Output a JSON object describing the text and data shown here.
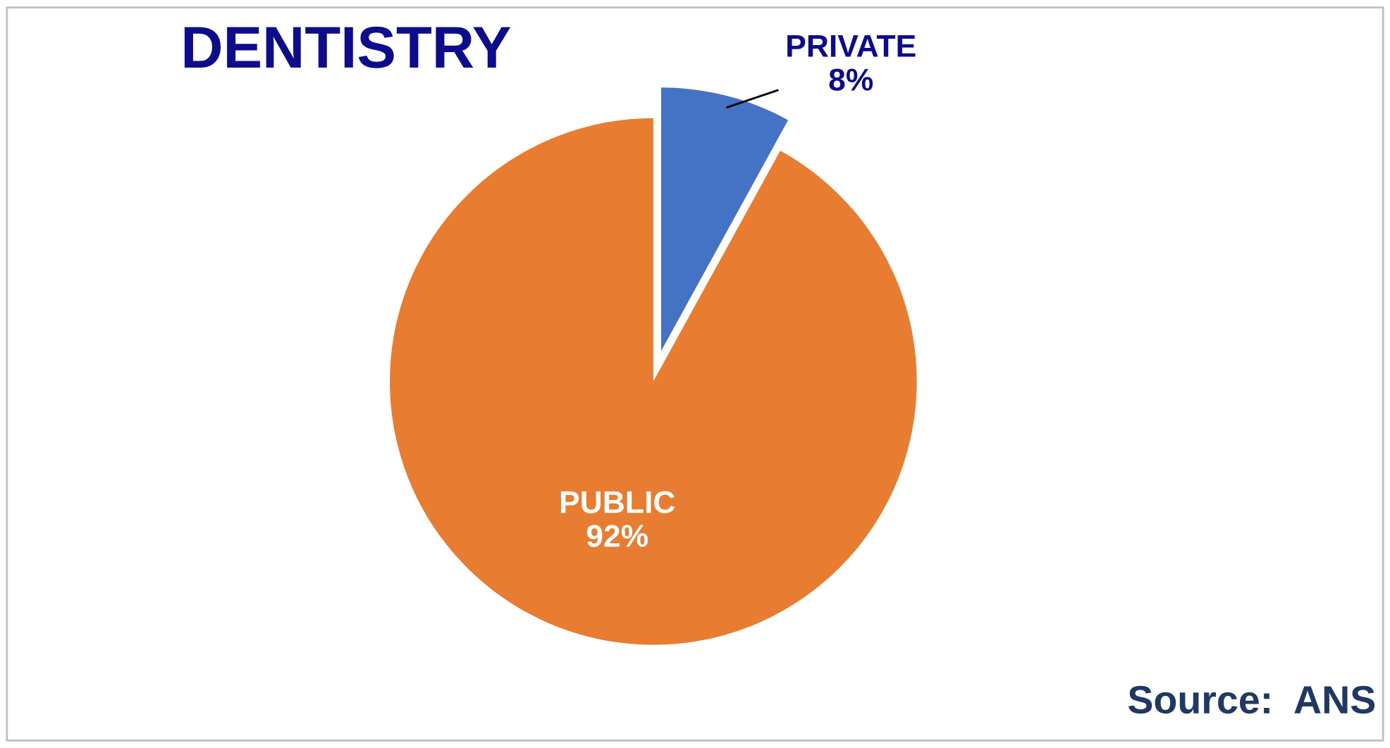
{
  "chart_data": {
    "type": "pie",
    "title": "DENTISTRY",
    "categories": [
      "PRIVATE",
      "PUBLIC"
    ],
    "values": [
      8,
      92
    ],
    "value_labels": [
      "8%",
      "92%"
    ],
    "colors": [
      "#4472c4",
      "#e87d31"
    ],
    "annotations": [
      "Source:  ANS"
    ]
  }
}
